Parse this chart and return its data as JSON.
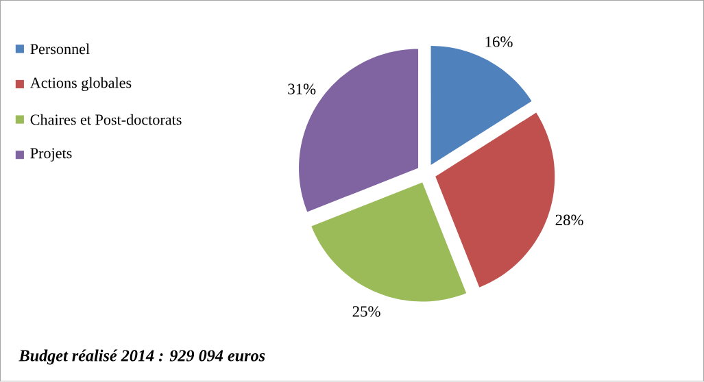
{
  "chart_data": {
    "type": "pie",
    "categories": [
      "Personnel",
      "Actions globales",
      "Chaires et Post-doctorats",
      "Projets"
    ],
    "values": [
      16,
      28,
      25,
      31
    ],
    "colors": [
      "#4f81bd",
      "#c0504d",
      "#9bbb59",
      "#8064a2"
    ],
    "value_labels": [
      "16%",
      "28%",
      "25%",
      "31%"
    ],
    "legend": "left",
    "annotations": [
      "Budget réalisé 2014 : 929 094 euros"
    ]
  }
}
